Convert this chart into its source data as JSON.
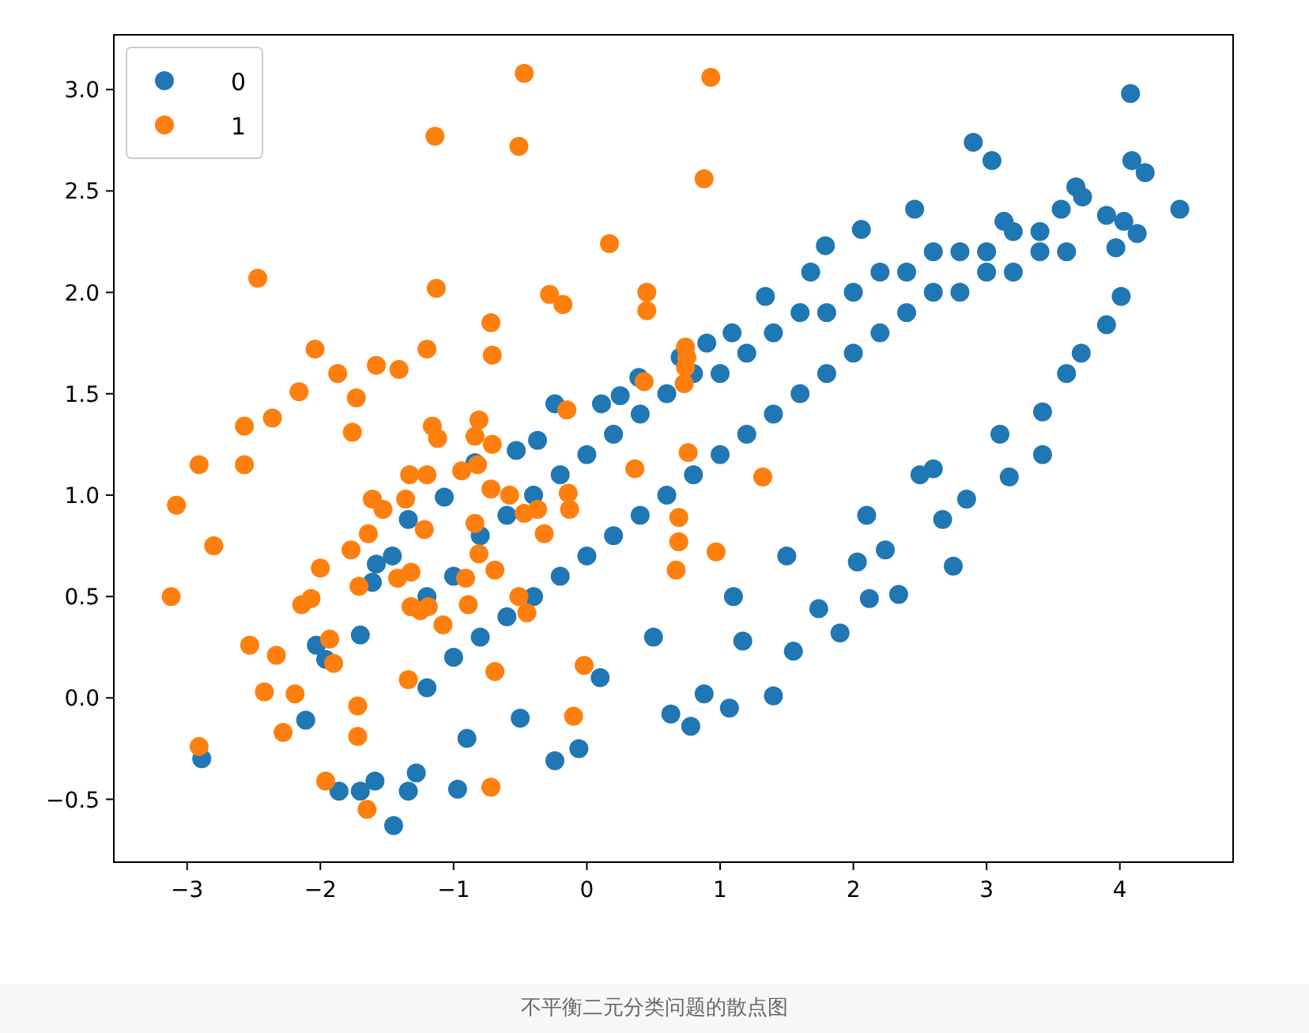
{
  "chart_data": {
    "type": "scatter",
    "xlim": [
      -3.55,
      4.85
    ],
    "ylim": [
      -0.81,
      3.27
    ],
    "xticks": [
      {
        "value": -3,
        "label": "−3"
      },
      {
        "value": -2,
        "label": "−2"
      },
      {
        "value": -1,
        "label": "−1"
      },
      0,
      1,
      2,
      3,
      4
    ],
    "yticks": [
      {
        "value": -0.5,
        "label": "−0.5"
      },
      {
        "value": 0,
        "label": "0.0"
      },
      0.5,
      {
        "value": 1,
        "label": "1.0"
      },
      1.5,
      {
        "value": 2,
        "label": "2.0"
      },
      2.5,
      {
        "value": 3,
        "label": "3.0"
      }
    ],
    "legend": "top left",
    "marker": "circle",
    "grid": false,
    "annotations": [
      "不平衡二元分类问题的散点图"
    ],
    "series": [
      {
        "name": "0",
        "color": "#1f77b4",
        "x": [
          4.08,
          4.09,
          4.19,
          4.45,
          2.9,
          3.04,
          2.46,
          3.67,
          3.72,
          3.9,
          4.03,
          4.13,
          3.97,
          3.56,
          3.13,
          2.06,
          1.79,
          1.68,
          1.34,
          1.09,
          0.9,
          0.7,
          0.39,
          0.25,
          0.11,
          -0.24,
          -0.37,
          -0.53,
          -0.84,
          -1.07,
          -1.34,
          -1.46,
          -1.58,
          -1.61,
          -1.7,
          -2.03,
          -1.96,
          -2.11,
          -2.89,
          -1.86,
          -1.7,
          -1.45,
          -1.34,
          -1.59,
          -1.28,
          -0.97,
          -0.24,
          -0.06,
          0.78,
          0.63,
          1.07,
          0.88,
          1.4,
          1.55,
          1.9,
          2.12,
          2.34,
          2.75,
          2.67,
          2.85,
          3.17,
          3.42,
          3.42,
          3.71,
          3.9,
          4.01,
          2.6,
          2.24,
          2.03,
          1.74,
          1.17,
          -1.2,
          -1.0,
          -0.8,
          -0.6,
          -0.4,
          -0.2,
          0.0,
          0.2,
          0.4,
          0.6,
          0.8,
          1.0,
          1.2,
          1.4,
          1.6,
          1.8,
          2.0,
          2.2,
          2.4,
          2.6,
          2.8,
          3.0,
          3.2,
          3.4,
          3.6,
          -1.2,
          -1.0,
          -0.8,
          -0.6,
          -0.4,
          -0.2,
          0.0,
          0.2,
          0.4,
          0.6,
          0.8,
          1.0,
          1.2,
          1.4,
          1.6,
          1.8,
          2.0,
          2.2,
          2.4,
          2.6,
          2.8,
          3.0,
          3.2,
          3.4,
          -0.9,
          -0.5,
          0.1,
          0.5,
          1.1,
          1.5,
          2.1,
          2.5,
          3.1,
          3.6
        ],
        "values": [
          2.98,
          2.65,
          2.59,
          2.41,
          2.74,
          2.65,
          2.41,
          2.52,
          2.47,
          2.38,
          2.35,
          2.29,
          2.22,
          2.41,
          2.35,
          2.31,
          2.23,
          2.1,
          1.98,
          1.8,
          1.75,
          1.68,
          1.58,
          1.49,
          1.45,
          1.45,
          1.27,
          1.22,
          1.16,
          0.99,
          0.88,
          0.7,
          0.66,
          0.57,
          0.31,
          0.26,
          0.19,
          -0.11,
          -0.3,
          -0.46,
          -0.46,
          -0.63,
          -0.46,
          -0.41,
          -0.37,
          -0.45,
          -0.31,
          -0.25,
          -0.14,
          -0.08,
          -0.05,
          0.02,
          0.01,
          0.23,
          0.32,
          0.49,
          0.51,
          0.65,
          0.88,
          0.98,
          1.09,
          1.41,
          1.2,
          1.7,
          1.84,
          1.98,
          1.13,
          0.73,
          0.67,
          0.44,
          0.28,
          0.05,
          0.2,
          0.3,
          0.4,
          0.5,
          0.6,
          0.7,
          0.8,
          0.9,
          1.0,
          1.1,
          1.2,
          1.3,
          1.4,
          1.5,
          1.6,
          1.7,
          1.8,
          1.9,
          2.0,
          2.0,
          2.1,
          2.1,
          2.2,
          2.2,
          0.5,
          0.6,
          0.8,
          0.9,
          1.0,
          1.1,
          1.2,
          1.3,
          1.4,
          1.5,
          1.6,
          1.6,
          1.7,
          1.8,
          1.9,
          1.9,
          2.0,
          2.1,
          2.1,
          2.2,
          2.2,
          2.2,
          2.3,
          2.3,
          -0.2,
          -0.1,
          0.1,
          0.3,
          0.5,
          0.7,
          0.9,
          1.1,
          1.3,
          1.6
        ]
      },
      {
        "name": "1",
        "color": "#ff7f0e",
        "x": [
          -0.47,
          0.93,
          -1.14,
          -0.51,
          0.88,
          0.17,
          -2.47,
          -1.13,
          -0.28,
          0.45,
          -0.18,
          0.45,
          -0.72,
          -0.71,
          -1.2,
          0.74,
          0.74,
          -2.04,
          -1.58,
          -1.41,
          -1.87,
          -2.16,
          -1.73,
          -1.16,
          -1.12,
          -0.81,
          -0.71,
          -0.84,
          -2.36,
          -2.57,
          -1.76,
          0.43,
          0.73,
          0.75,
          -2.91,
          -2.57,
          -3.08,
          -2.8,
          -3.12,
          -1.61,
          -1.2,
          -0.94,
          -1.33,
          -1.53,
          -1.36,
          -1.64,
          -2.0,
          -1.71,
          -1.42,
          -1.32,
          -1.77,
          -1.22,
          -2.14,
          -2.07,
          -1.93,
          -2.33,
          -2.53,
          -2.42,
          -2.19,
          -2.28,
          -1.96,
          -2.91,
          -1.72,
          -1.65,
          -1.9,
          -1.72,
          -1.34,
          -1.32,
          -1.25,
          -1.19,
          -1.08,
          -0.91,
          -0.89,
          -0.81,
          -0.69,
          -0.51,
          -0.45,
          -0.82,
          -0.72,
          -0.58,
          -0.47,
          -0.37,
          -0.32,
          -0.15,
          -0.84,
          -0.69,
          -0.72,
          -0.02,
          -0.1,
          0.36,
          0.76,
          0.69,
          0.69,
          0.67,
          0.97,
          1.32,
          -0.14,
          -0.13
        ],
        "values": [
          3.08,
          3.06,
          2.77,
          2.72,
          2.56,
          2.24,
          2.07,
          2.02,
          1.99,
          2.0,
          1.94,
          1.91,
          1.85,
          1.69,
          1.72,
          1.73,
          1.63,
          1.72,
          1.64,
          1.62,
          1.6,
          1.51,
          1.48,
          1.34,
          1.28,
          1.37,
          1.25,
          1.29,
          1.38,
          1.34,
          1.31,
          1.56,
          1.55,
          1.68,
          1.15,
          1.15,
          0.95,
          0.75,
          0.5,
          0.98,
          1.1,
          1.12,
          1.1,
          0.93,
          0.98,
          0.81,
          0.64,
          0.55,
          0.59,
          0.62,
          0.73,
          0.83,
          0.46,
          0.49,
          0.29,
          0.21,
          0.26,
          0.03,
          0.02,
          -0.17,
          -0.41,
          -0.24,
          -0.19,
          -0.55,
          0.17,
          -0.04,
          0.09,
          0.45,
          0.43,
          0.45,
          0.36,
          0.59,
          0.46,
          0.71,
          0.63,
          0.5,
          0.42,
          1.15,
          1.03,
          1.0,
          0.91,
          0.93,
          0.81,
          1.42,
          0.86,
          0.13,
          -0.44,
          0.16,
          -0.09,
          1.13,
          1.21,
          0.89,
          0.77,
          0.63,
          0.72,
          1.09,
          1.01,
          0.93
        ]
      }
    ]
  }
}
